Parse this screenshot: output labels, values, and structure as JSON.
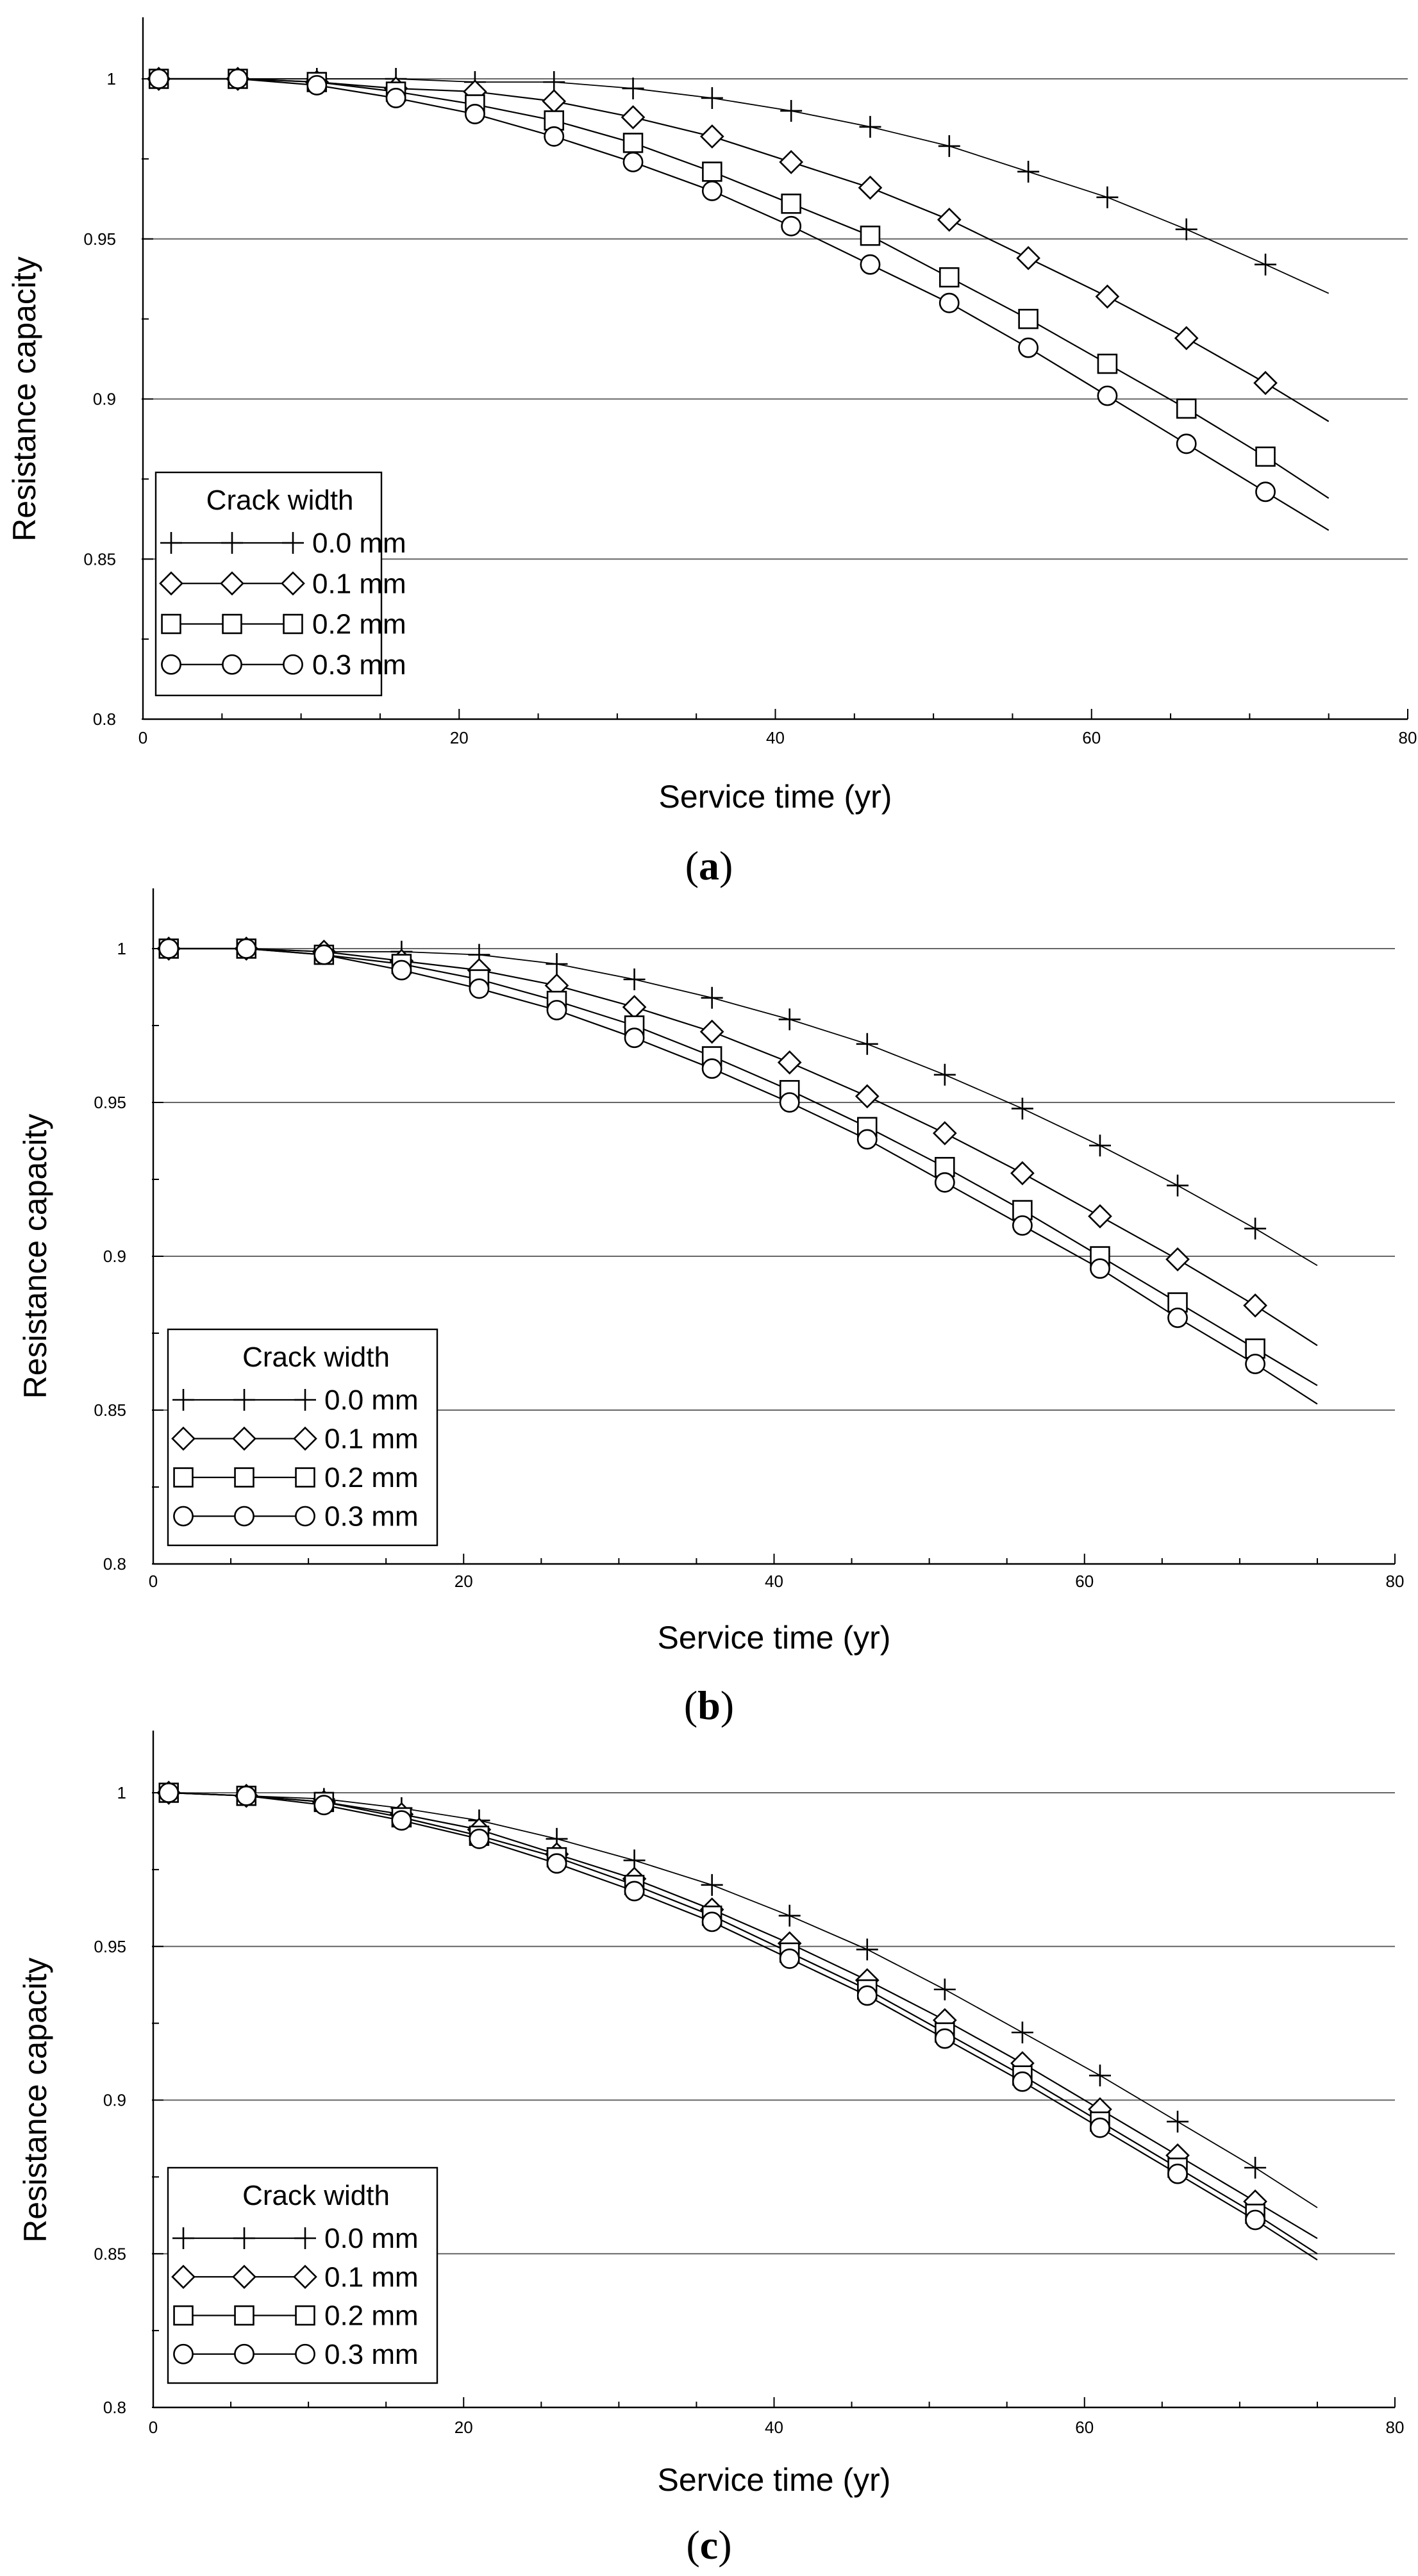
{
  "figure": {
    "panels": [
      {
        "caption_open": "(",
        "caption_letter": "a",
        "caption_close": ")"
      },
      {
        "caption_open": "(",
        "caption_letter": "b",
        "caption_close": ")"
      },
      {
        "caption_open": "(",
        "caption_letter": "c",
        "caption_close": ")"
      }
    ]
  },
  "chart_data": [
    {
      "type": "line",
      "panel": "a",
      "title": "",
      "xlabel": "Service time (yr)",
      "ylabel": "Resistance capacity",
      "xlim": [
        0,
        80
      ],
      "ylim": [
        0.8,
        1.02
      ],
      "xticks": [
        0,
        20,
        40,
        60,
        80
      ],
      "xtick_labels": [
        "0",
        "20",
        "40",
        "60",
        "80"
      ],
      "yticks": [
        0.8,
        0.85,
        0.9,
        0.95,
        1
      ],
      "ytick_labels": [
        "0.8",
        "0.85",
        "0.9",
        "0.95",
        "1"
      ],
      "grid": "horizontal",
      "legend": {
        "title": "Crack width",
        "position": "lower-left"
      },
      "x": [
        1,
        6,
        11,
        16,
        21,
        26,
        31,
        36,
        41,
        46,
        51,
        56,
        61,
        66,
        71,
        75
      ],
      "series": [
        {
          "name": "0.0 mm",
          "marker": "plus",
          "values": [
            1.0,
            1.0,
            1.0,
            1.0,
            0.999,
            0.999,
            0.997,
            0.994,
            0.99,
            0.985,
            0.979,
            0.971,
            0.963,
            0.953,
            0.942,
            0.933
          ]
        },
        {
          "name": "0.1 mm",
          "marker": "diamond",
          "values": [
            1.0,
            1.0,
            0.999,
            0.997,
            0.996,
            0.993,
            0.988,
            0.982,
            0.974,
            0.966,
            0.956,
            0.944,
            0.932,
            0.919,
            0.905,
            0.893
          ]
        },
        {
          "name": "0.2 mm",
          "marker": "square",
          "values": [
            1.0,
            1.0,
            0.999,
            0.996,
            0.992,
            0.987,
            0.98,
            0.971,
            0.961,
            0.951,
            0.938,
            0.925,
            0.911,
            0.897,
            0.882,
            0.869
          ]
        },
        {
          "name": "0.3 mm",
          "marker": "circle",
          "values": [
            1.0,
            1.0,
            0.998,
            0.994,
            0.989,
            0.982,
            0.974,
            0.965,
            0.954,
            0.942,
            0.93,
            0.916,
            0.901,
            0.886,
            0.871,
            0.859
          ]
        }
      ]
    },
    {
      "type": "line",
      "panel": "b",
      "title": "",
      "xlabel": "Service time (yr)",
      "ylabel": "Resistance capacity",
      "xlim": [
        0,
        80
      ],
      "ylim": [
        0.8,
        1.02
      ],
      "xticks": [
        0,
        20,
        40,
        60,
        80
      ],
      "xtick_labels": [
        "0",
        "20",
        "40",
        "60",
        "80"
      ],
      "yticks": [
        0.8,
        0.85,
        0.9,
        0.95,
        1
      ],
      "ytick_labels": [
        "0.8",
        "0.85",
        "0.9",
        "0.95",
        "1"
      ],
      "grid": "horizontal",
      "legend": {
        "title": "Crack width",
        "position": "lower-left"
      },
      "x": [
        1,
        6,
        11,
        16,
        21,
        26,
        31,
        36,
        41,
        46,
        51,
        56,
        61,
        66,
        71,
        75
      ],
      "series": [
        {
          "name": "0.0 mm",
          "marker": "plus",
          "values": [
            1.0,
            1.0,
            0.999,
            0.999,
            0.998,
            0.995,
            0.99,
            0.984,
            0.977,
            0.969,
            0.959,
            0.948,
            0.936,
            0.923,
            0.909,
            0.897
          ]
        },
        {
          "name": "0.1 mm",
          "marker": "diamond",
          "values": [
            1.0,
            1.0,
            0.999,
            0.996,
            0.993,
            0.988,
            0.981,
            0.973,
            0.963,
            0.952,
            0.94,
            0.927,
            0.913,
            0.899,
            0.884,
            0.871
          ]
        },
        {
          "name": "0.2 mm",
          "marker": "square",
          "values": [
            1.0,
            1.0,
            0.998,
            0.995,
            0.99,
            0.983,
            0.975,
            0.965,
            0.954,
            0.942,
            0.929,
            0.915,
            0.9,
            0.885,
            0.87,
            0.858
          ]
        },
        {
          "name": "0.3 mm",
          "marker": "circle",
          "values": [
            1.0,
            1.0,
            0.998,
            0.993,
            0.987,
            0.98,
            0.971,
            0.961,
            0.95,
            0.938,
            0.924,
            0.91,
            0.896,
            0.88,
            0.865,
            0.852
          ]
        }
      ]
    },
    {
      "type": "line",
      "panel": "c",
      "title": "",
      "xlabel": "Service time (yr)",
      "ylabel": "Resistance capacity",
      "xlim": [
        0,
        80
      ],
      "ylim": [
        0.8,
        1.02
      ],
      "xticks": [
        0,
        20,
        40,
        60,
        80
      ],
      "xtick_labels": [
        "0",
        "20",
        "40",
        "60",
        "80"
      ],
      "yticks": [
        0.8,
        0.85,
        0.9,
        0.95,
        1
      ],
      "ytick_labels": [
        "0.8",
        "0.85",
        "0.9",
        "0.95",
        "1"
      ],
      "grid": "horizontal",
      "legend": {
        "title": "Crack width",
        "position": "lower-left"
      },
      "x": [
        1,
        6,
        11,
        16,
        21,
        26,
        31,
        36,
        41,
        46,
        51,
        56,
        61,
        66,
        71,
        75
      ],
      "series": [
        {
          "name": "0.0 mm",
          "marker": "plus",
          "values": [
            1.0,
            0.999,
            0.998,
            0.995,
            0.991,
            0.985,
            0.978,
            0.97,
            0.96,
            0.949,
            0.936,
            0.922,
            0.908,
            0.893,
            0.878,
            0.865
          ]
        },
        {
          "name": "0.1 mm",
          "marker": "diamond",
          "values": [
            1.0,
            0.999,
            0.997,
            0.993,
            0.988,
            0.98,
            0.972,
            0.962,
            0.951,
            0.939,
            0.926,
            0.912,
            0.897,
            0.882,
            0.867,
            0.855
          ]
        },
        {
          "name": "0.2 mm",
          "marker": "square",
          "values": [
            1.0,
            0.999,
            0.997,
            0.992,
            0.986,
            0.979,
            0.97,
            0.96,
            0.948,
            0.936,
            0.922,
            0.908,
            0.893,
            0.878,
            0.863,
            0.85
          ]
        },
        {
          "name": "0.3 mm",
          "marker": "circle",
          "values": [
            1.0,
            0.999,
            0.996,
            0.991,
            0.985,
            0.977,
            0.968,
            0.958,
            0.946,
            0.934,
            0.92,
            0.906,
            0.891,
            0.876,
            0.861,
            0.848
          ]
        }
      ]
    }
  ]
}
